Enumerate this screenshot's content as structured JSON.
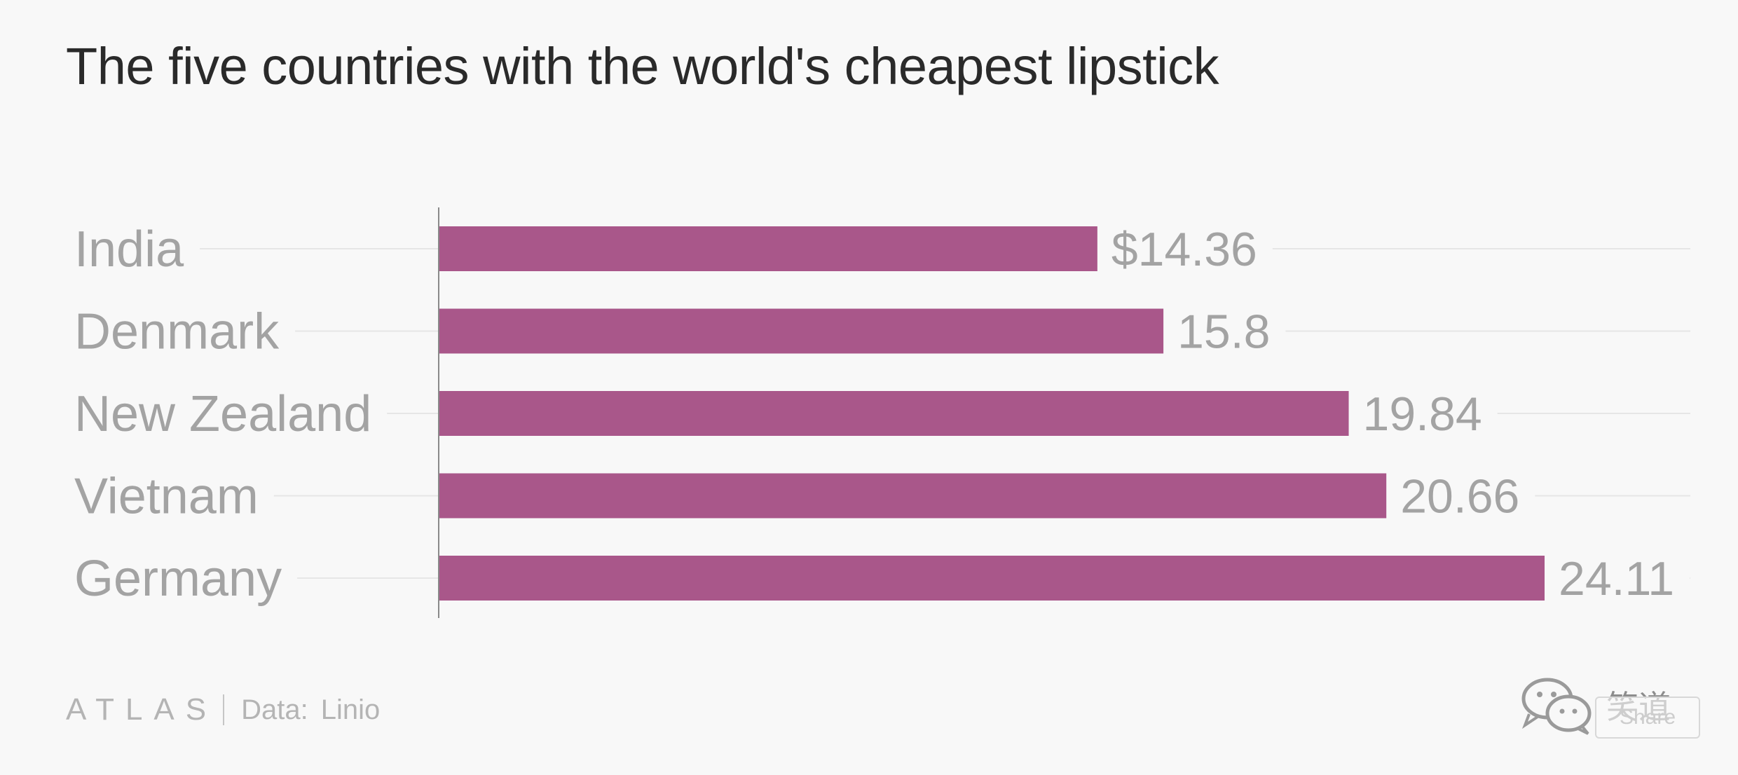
{
  "chart_data": {
    "type": "bar",
    "orientation": "horizontal",
    "title": "The five countries with the world's cheapest lipstick",
    "categories": [
      "India",
      "Denmark",
      "New Zealand",
      "Vietnam",
      "Germany"
    ],
    "values": [
      14.36,
      15.8,
      19.84,
      20.66,
      24.11
    ],
    "value_labels": [
      "$14.36",
      "15.8",
      "19.84",
      "20.66",
      "24.11"
    ],
    "xlim": [
      0,
      24.11
    ],
    "grid": true,
    "bar_color": "#a9578a",
    "xlabel": "",
    "ylabel": ""
  },
  "footer": {
    "brand": "ATLAS",
    "source_prefix": "Data:",
    "source_name": "Linio"
  },
  "watermark": {
    "text": "笑道",
    "share_label": "Share"
  },
  "colors": {
    "background": "#f8f8f8",
    "title": "#2a2a2a",
    "label": "#a3a3a3",
    "gridline": "#e6e6e6",
    "axis": "#8a8a8a"
  }
}
